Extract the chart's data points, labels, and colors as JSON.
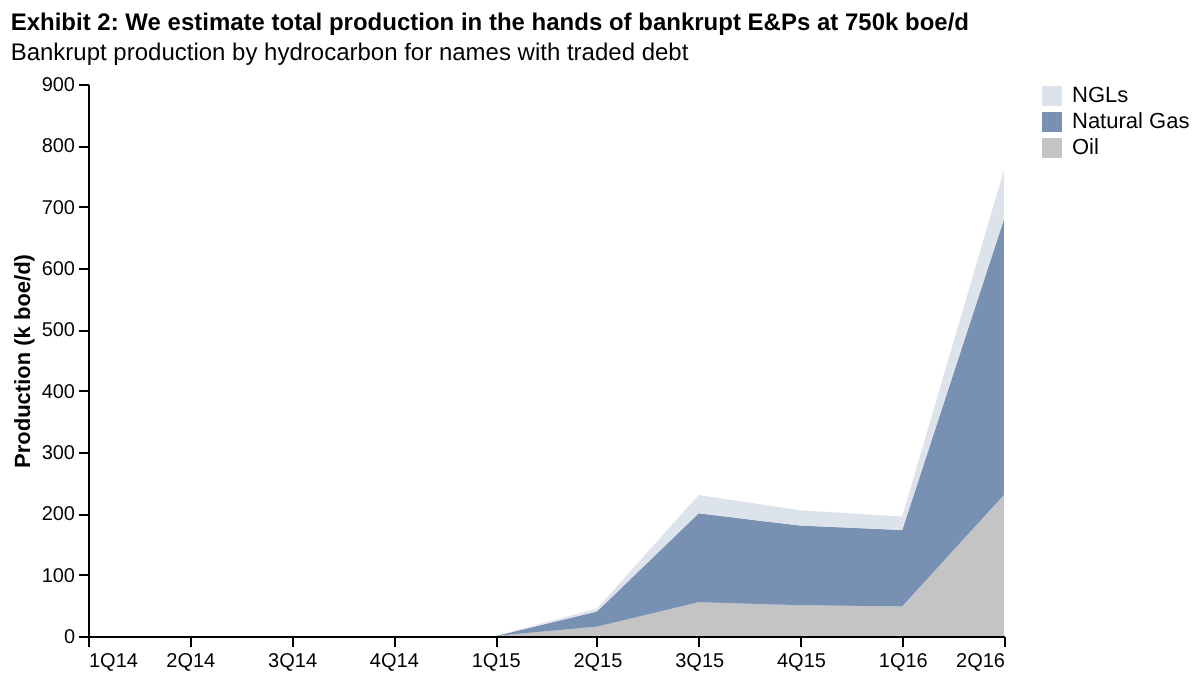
{
  "chart_data": {
    "type": "area",
    "title": "Exhibit 2: We estimate total production in the hands of bankrupt E&Ps at 750k boe/d",
    "subtitle": "Bankrupt production by hydrocarbon for names with traded debt",
    "ylabel": "Production (k boe/d)",
    "categories": [
      "1Q14",
      "2Q14",
      "3Q14",
      "4Q14",
      "1Q15",
      "2Q15",
      "3Q15",
      "4Q15",
      "1Q16",
      "2Q16"
    ],
    "stacked": true,
    "series": [
      {
        "name": "Oil",
        "color": "#c4c4c4",
        "values": [
          0,
          0,
          0,
          0,
          0,
          15,
          55,
          50,
          48,
          230
        ]
      },
      {
        "name": "Natural Gas",
        "color": "#7891b3",
        "values": [
          0,
          0,
          0,
          0,
          0,
          25,
          145,
          130,
          125,
          450
        ]
      },
      {
        "name": "NGLs",
        "color": "#dde3ea",
        "values": [
          0,
          0,
          0,
          0,
          0,
          5,
          30,
          25,
          22,
          80
        ]
      }
    ],
    "ylim": [
      0,
      900
    ],
    "yticks": [
      0,
      100,
      200,
      300,
      400,
      500,
      600,
      700,
      800,
      900
    ],
    "grid": false,
    "legend": "right"
  }
}
